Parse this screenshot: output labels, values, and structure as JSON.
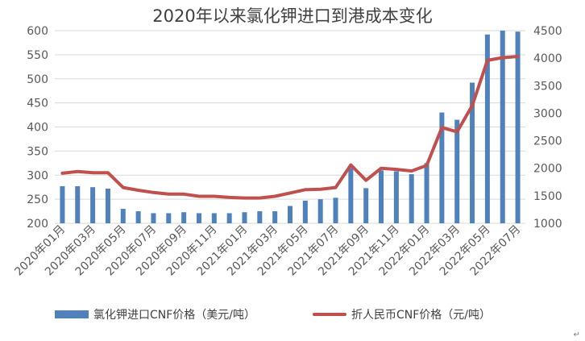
{
  "chart_data": {
    "type": "bar",
    "title": "2020年以来氯化钾进口到港成本变化",
    "months": [
      "2020年01月",
      "2020年02月",
      "2020年03月",
      "2020年04月",
      "2020年05月",
      "2020年06月",
      "2020年07月",
      "2020年08月",
      "2020年09月",
      "2020年10月",
      "2020年11月",
      "2020年12月",
      "2021年01月",
      "2021年02月",
      "2021年03月",
      "2021年04月",
      "2021年05月",
      "2021年06月",
      "2021年07月",
      "2021年08月",
      "2021年09月",
      "2021年10月",
      "2021年11月",
      "2021年12月",
      "2022年01月",
      "2022年02月",
      "2022年03月",
      "2022年04月",
      "2022年05月",
      "2022年06月",
      "2022年07月"
    ],
    "x_tick_labels": [
      "2020年01月",
      "2020年03月",
      "2020年05月",
      "2020年07月",
      "2020年09月",
      "2020年11月",
      "2021年01月",
      "2021年03月",
      "2021年05月",
      "2021年07月",
      "2021年09月",
      "2021年11月",
      "2022年01月",
      "2022年03月",
      "2022年05月",
      "2022年07月"
    ],
    "y_left": {
      "ticks": [
        200,
        250,
        300,
        350,
        400,
        450,
        500,
        550,
        600
      ],
      "ylim": [
        200,
        600
      ]
    },
    "y_right": {
      "ticks": [
        1000,
        1500,
        2000,
        2500,
        3000,
        3500,
        4000,
        4500
      ],
      "ylim": [
        1000,
        4500
      ]
    },
    "series": [
      {
        "name": "氯化钾进口CNF价格（美元/吨）",
        "type": "bar",
        "axis": "left",
        "color": "#4f81bd",
        "values": [
          277,
          277,
          275,
          272,
          230,
          225,
          221,
          221,
          223,
          221,
          221,
          221,
          223,
          225,
          225,
          236,
          247,
          250,
          253,
          315,
          273,
          310,
          308,
          302,
          325,
          430,
          415,
          492,
          592,
          600,
          598
        ]
      },
      {
        "name": "折人民币CNF价格（元/吨）",
        "type": "line",
        "axis": "right",
        "color": "#c0504d",
        "values": [
          1910,
          1940,
          1920,
          1920,
          1650,
          1600,
          1560,
          1530,
          1530,
          1490,
          1490,
          1470,
          1460,
          1460,
          1490,
          1550,
          1610,
          1620,
          1650,
          2060,
          1780,
          2000,
          1980,
          1950,
          2050,
          2740,
          2660,
          3140,
          3960,
          4010,
          4030
        ]
      }
    ],
    "legend_position": "bottom",
    "grid": true
  },
  "corner_mark": "↵"
}
